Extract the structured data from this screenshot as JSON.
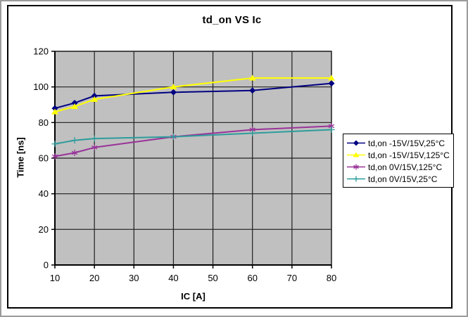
{
  "chart_data": {
    "type": "line",
    "title": "td_on VS Ic",
    "xlabel": "IC [A]",
    "ylabel": "Time [ns]",
    "xlim": [
      10,
      80
    ],
    "ylim": [
      0,
      120
    ],
    "x_ticks": [
      10,
      20,
      30,
      40,
      50,
      60,
      70,
      80
    ],
    "y_ticks": [
      0,
      20,
      40,
      60,
      80,
      100,
      120
    ],
    "grid": true,
    "plot_bg": "#c0c0c0",
    "gridline_color": "#1f1f1f",
    "axis_color": "#000000",
    "legend_position": "right",
    "x": [
      10,
      15,
      20,
      40,
      60,
      80
    ],
    "series": [
      {
        "name": "td,on -15V/15V,25°C",
        "color": "#000080",
        "marker": "diamond",
        "values": [
          88,
          91,
          95,
          97,
          98,
          102
        ]
      },
      {
        "name": "td,on -15V/15V,125°C",
        "color": "#ffff00",
        "marker": "triangle",
        "values": [
          86,
          89,
          93,
          100,
          105,
          105
        ]
      },
      {
        "name": "td,on 0V/15V,125°C",
        "color": "#993399",
        "marker": "asterisk",
        "values": [
          61,
          63,
          66,
          72,
          76,
          78
        ]
      },
      {
        "name": "td,on 0V/15V,25°C",
        "color": "#2e9c9c",
        "marker": "plus",
        "values": [
          68,
          70,
          71,
          72,
          74,
          76
        ]
      }
    ]
  }
}
